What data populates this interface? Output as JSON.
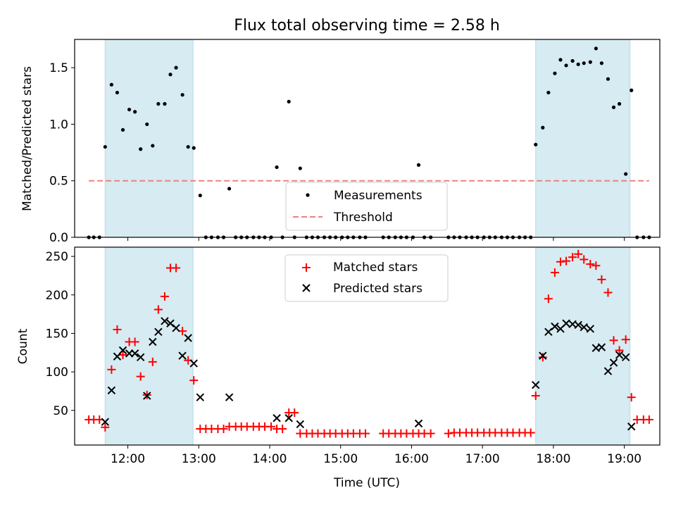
{
  "chart_data": [
    {
      "type": "scatter",
      "title": "Flux total observing time = 2.58 h",
      "ylabel": "Matched/Predicted stars",
      "xlim": [
        11.25,
        19.5
      ],
      "ylim": [
        0,
        1.75
      ],
      "yticks": [
        0.0,
        0.5,
        1.0,
        1.5
      ],
      "ytick_labels": [
        "0.0",
        "0.5",
        "1.0",
        "1.5"
      ],
      "legend_position": "lower-center",
      "shaded_intervals": [
        [
          11.68,
          12.92
        ],
        [
          17.75,
          19.08
        ]
      ],
      "threshold": {
        "name": "Threshold",
        "value": 0.5,
        "x_range": [
          11.45,
          19.35
        ],
        "color": "#f08080"
      },
      "series": [
        {
          "name": "Measurements",
          "color": "#000000",
          "x": [
            11.45,
            11.52,
            11.6,
            11.68,
            11.77,
            11.85,
            11.93,
            12.02,
            12.1,
            12.18,
            12.27,
            12.35,
            12.43,
            12.52,
            12.6,
            12.68,
            12.77,
            12.85,
            12.93,
            13.02,
            13.1,
            13.18,
            13.27,
            13.35,
            13.43,
            13.52,
            13.6,
            13.68,
            13.77,
            13.85,
            13.93,
            14.02,
            14.1,
            14.18,
            14.27,
            14.35,
            14.43,
            14.52,
            14.6,
            14.68,
            14.77,
            14.85,
            14.93,
            15.02,
            15.1,
            15.18,
            15.27,
            15.35,
            15.6,
            15.68,
            15.77,
            15.85,
            15.93,
            16.02,
            16.1,
            16.18,
            16.27,
            16.52,
            16.6,
            16.68,
            16.77,
            16.85,
            16.93,
            17.02,
            17.1,
            17.18,
            17.27,
            17.35,
            17.43,
            17.52,
            17.6,
            17.68,
            17.75,
            17.85,
            17.93,
            18.02,
            18.1,
            18.18,
            18.27,
            18.35,
            18.43,
            18.52,
            18.6,
            18.68,
            18.77,
            18.85,
            18.93,
            19.02,
            19.1,
            19.18,
            19.27,
            19.35
          ],
          "y": [
            0,
            0,
            0,
            0.8,
            1.35,
            1.28,
            0.95,
            1.13,
            1.11,
            0.78,
            1.0,
            0.81,
            1.18,
            1.18,
            1.44,
            1.5,
            1.26,
            0.8,
            0.79,
            0.37,
            0,
            0,
            0,
            0,
            0.43,
            0,
            0,
            0,
            0,
            0,
            0,
            0,
            0.62,
            0,
            1.2,
            0,
            0.61,
            0,
            0,
            0,
            0,
            0,
            0,
            0,
            0,
            0,
            0,
            0,
            0,
            0,
            0,
            0,
            0,
            0,
            0.64,
            0,
            0,
            0,
            0,
            0,
            0,
            0,
            0,
            0,
            0,
            0,
            0,
            0,
            0,
            0,
            0,
            0,
            0.82,
            0.97,
            1.28,
            1.45,
            1.57,
            1.52,
            1.56,
            1.53,
            1.54,
            1.55,
            1.67,
            1.54,
            1.4,
            1.15,
            1.18,
            0.56,
            1.3,
            0,
            0,
            0
          ]
        }
      ]
    },
    {
      "type": "scatter",
      "xlabel": "Time (UTC)",
      "ylabel": "Count",
      "xlim": [
        11.25,
        19.5
      ],
      "ylim": [
        5,
        262
      ],
      "xticks": [
        12,
        13,
        14,
        15,
        16,
        17,
        18,
        19
      ],
      "xtick_labels": [
        "12:00",
        "13:00",
        "14:00",
        "15:00",
        "16:00",
        "17:00",
        "18:00",
        "19:00"
      ],
      "yticks": [
        50,
        100,
        150,
        200,
        250
      ],
      "ytick_labels": [
        "50",
        "100",
        "150",
        "200",
        "250"
      ],
      "legend_position": "upper-center",
      "shaded_intervals": [
        [
          11.68,
          12.92
        ],
        [
          17.75,
          19.08
        ]
      ],
      "series": [
        {
          "name": "Matched stars",
          "marker": "plus",
          "color": "#ff0000",
          "x": [
            11.45,
            11.52,
            11.6,
            11.68,
            11.77,
            11.85,
            11.93,
            12.02,
            12.1,
            12.18,
            12.27,
            12.35,
            12.43,
            12.52,
            12.6,
            12.68,
            12.77,
            12.85,
            12.93,
            13.02,
            13.1,
            13.18,
            13.27,
            13.35,
            13.43,
            13.52,
            13.6,
            13.68,
            13.77,
            13.85,
            13.93,
            14.02,
            14.1,
            14.18,
            14.27,
            14.35,
            14.43,
            14.52,
            14.6,
            14.68,
            14.77,
            14.85,
            14.93,
            15.02,
            15.1,
            15.18,
            15.27,
            15.35,
            15.6,
            15.68,
            15.77,
            15.85,
            15.93,
            16.02,
            16.1,
            16.18,
            16.27,
            16.52,
            16.6,
            16.68,
            16.77,
            16.85,
            16.93,
            17.02,
            17.1,
            17.18,
            17.27,
            17.35,
            17.43,
            17.52,
            17.6,
            17.68,
            17.75,
            17.85,
            17.93,
            18.02,
            18.1,
            18.18,
            18.27,
            18.35,
            18.43,
            18.52,
            18.6,
            18.68,
            18.77,
            18.85,
            18.93,
            19.02,
            19.1,
            19.18,
            19.27,
            19.35
          ],
          "y": [
            38,
            38,
            38,
            28,
            103,
            155,
            122,
            139,
            139,
            94,
            70,
            113,
            181,
            198,
            235,
            235,
            153,
            115,
            89,
            26,
            26,
            26,
            26,
            26,
            29,
            29,
            29,
            29,
            29,
            29,
            29,
            29,
            26,
            26,
            47,
            47,
            20,
            20,
            20,
            20,
            20,
            20,
            20,
            20,
            20,
            20,
            20,
            20,
            20,
            20,
            20,
            20,
            20,
            20,
            20,
            20,
            20,
            20,
            21,
            21,
            21,
            21,
            21,
            21,
            21,
            21,
            21,
            21,
            21,
            21,
            21,
            21,
            69,
            119,
            195,
            229,
            243,
            244,
            249,
            253,
            246,
            240,
            238,
            220,
            203,
            141,
            128,
            142,
            67,
            38,
            38,
            38
          ]
        },
        {
          "name": "Predicted stars",
          "marker": "x",
          "color": "#000000",
          "x": [
            11.68,
            11.77,
            11.85,
            11.93,
            12.02,
            12.1,
            12.18,
            12.27,
            12.35,
            12.43,
            12.52,
            12.6,
            12.68,
            12.77,
            12.85,
            12.93,
            13.02,
            13.43,
            14.1,
            14.27,
            14.43,
            16.1,
            17.75,
            17.85,
            17.93,
            18.02,
            18.1,
            18.18,
            18.27,
            18.35,
            18.43,
            18.52,
            18.6,
            18.68,
            18.77,
            18.85,
            18.93,
            19.02,
            19.1
          ],
          "y": [
            35,
            76,
            120,
            128,
            124,
            124,
            119,
            69,
            139,
            152,
            166,
            163,
            157,
            121,
            144,
            111,
            67,
            67,
            40,
            40,
            32,
            33,
            83,
            121,
            152,
            159,
            156,
            163,
            162,
            161,
            158,
            156,
            131,
            132,
            101,
            112,
            122,
            119,
            29
          ]
        }
      ]
    }
  ]
}
